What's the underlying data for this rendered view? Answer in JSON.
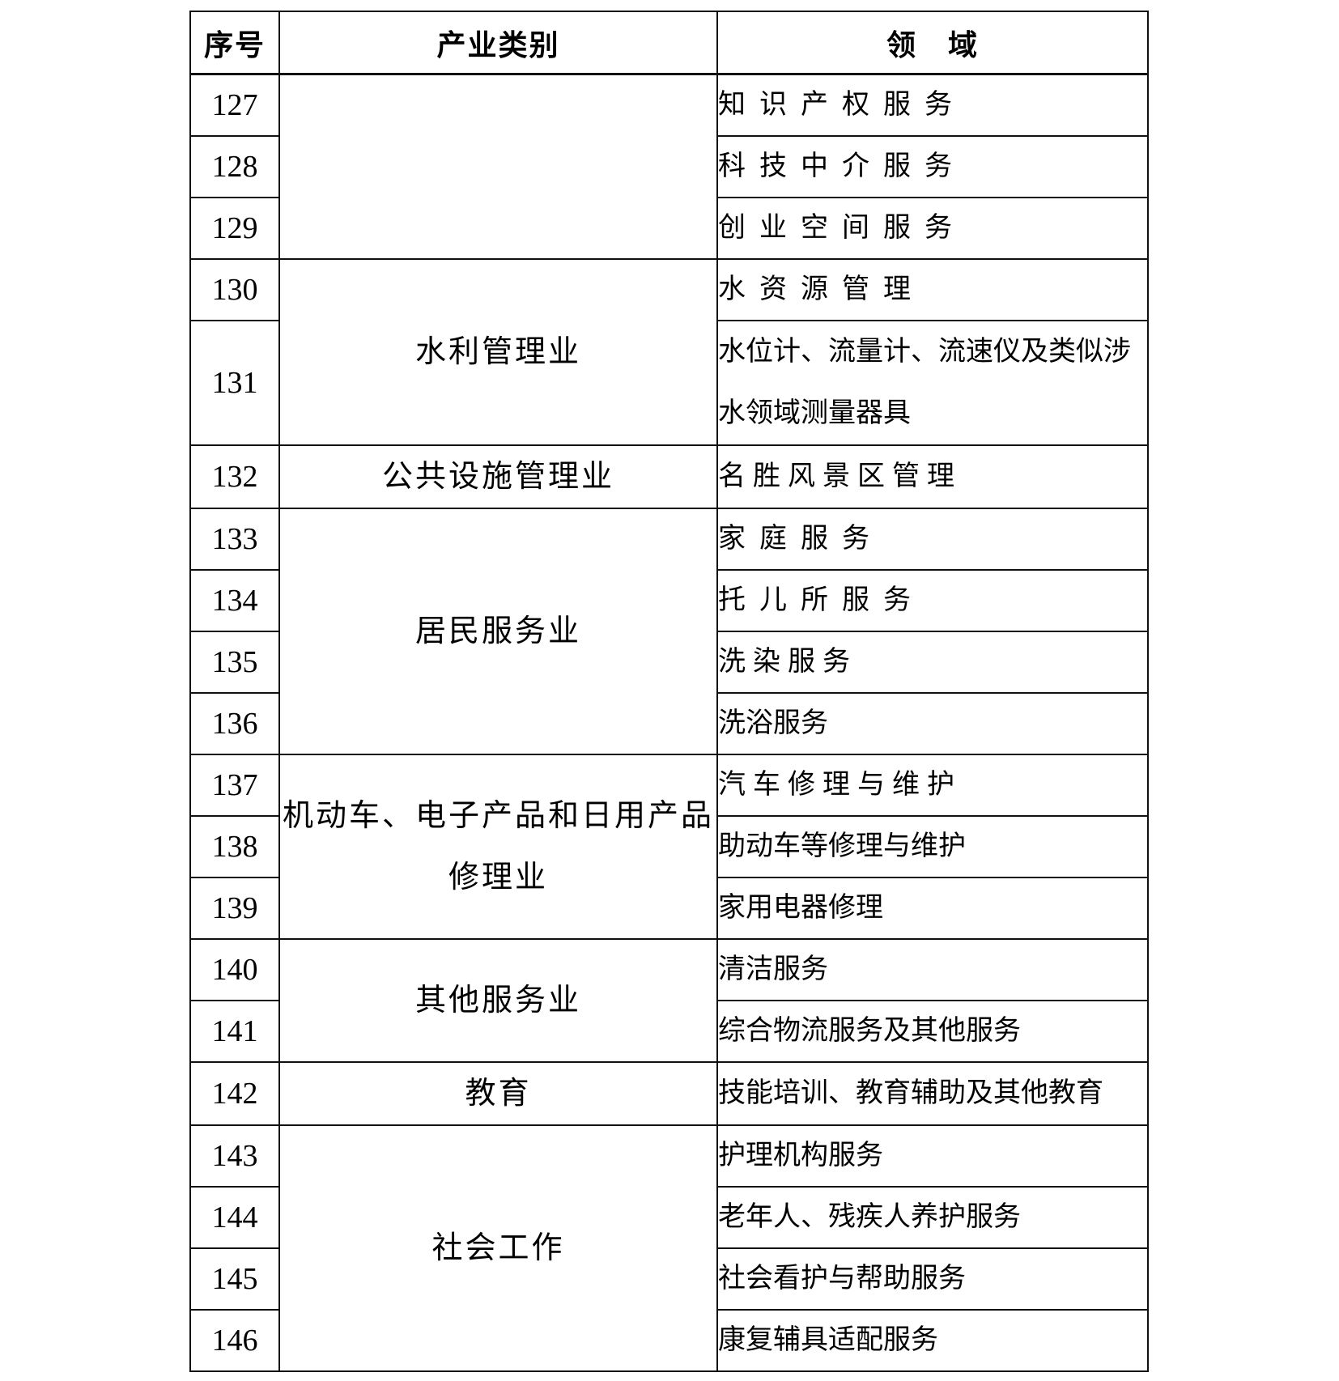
{
  "colors": {
    "background": "#ffffff",
    "border": "#111111",
    "text": "#000000"
  },
  "table": {
    "columns": [
      {
        "key": "no",
        "label": "序号"
      },
      {
        "key": "category",
        "label": "产业类别"
      },
      {
        "key": "field",
        "label": "领　域"
      }
    ],
    "groups": [
      {
        "category": "",
        "rows": [
          {
            "no": "127",
            "field": "知识产权服务"
          },
          {
            "no": "128",
            "field": "科技中介服务"
          },
          {
            "no": "129",
            "field": "创业空间服务"
          }
        ]
      },
      {
        "category": "水利管理业",
        "rows": [
          {
            "no": "130",
            "field": "水资源管理"
          },
          {
            "no": "131",
            "field": [
              "水位计、流量计、流速仪及类似涉",
              "水领域测量器具"
            ]
          }
        ]
      },
      {
        "category": "公共设施管理业",
        "rows": [
          {
            "no": "132",
            "field": "名胜风景区管理"
          }
        ]
      },
      {
        "category": "居民服务业",
        "rows": [
          {
            "no": "133",
            "field": "家庭服务"
          },
          {
            "no": "134",
            "field": "托儿所服务"
          },
          {
            "no": "135",
            "field": "洗染服务"
          },
          {
            "no": "136",
            "field": "洗浴服务"
          }
        ]
      },
      {
        "category": [
          "机动车、电子产品和日用产品",
          "修理业"
        ],
        "rows": [
          {
            "no": "137",
            "field": "汽车修理与维护"
          },
          {
            "no": "138",
            "field": "助动车等修理与维护"
          },
          {
            "no": "139",
            "field": "家用电器修理"
          }
        ]
      },
      {
        "category": "其他服务业",
        "rows": [
          {
            "no": "140",
            "field": "清洁服务"
          },
          {
            "no": "141",
            "field": "综合物流服务及其他服务"
          }
        ]
      },
      {
        "category": "教育",
        "rows": [
          {
            "no": "142",
            "field": "技能培训、教育辅助及其他教育"
          }
        ]
      },
      {
        "category": "社会工作",
        "rows": [
          {
            "no": "143",
            "field": "护理机构服务"
          },
          {
            "no": "144",
            "field": "老年人、残疾人养护服务"
          },
          {
            "no": "145",
            "field": "社会看护与帮助服务"
          },
          {
            "no": "146",
            "field": "康复辅具适配服务"
          }
        ]
      }
    ]
  }
}
